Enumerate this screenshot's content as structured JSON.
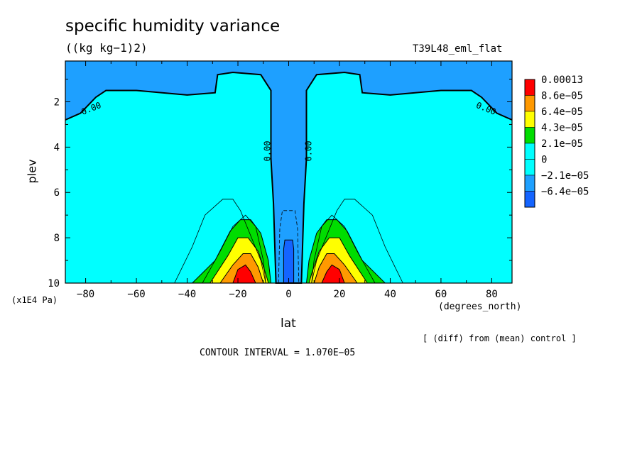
{
  "title": "specific humidity variance",
  "units": "((kg kg−1)2)",
  "run": "T39L48_eml_flat",
  "note": "[ (diff) from (mean) control ]",
  "contour_interval": "CONTOUR INTERVAL = 1.070E−05",
  "chart_data": {
    "type": "heatmap",
    "title": "specific humidity variance",
    "xlabel": "lat",
    "xunits": "(degrees_north)",
    "ylabel": "plev",
    "yunits": "(x1E4 Pa)",
    "xlim": [
      -88,
      88
    ],
    "ylim": [
      10,
      0.2
    ],
    "xticks": [
      -80,
      -60,
      -40,
      -20,
      0,
      20,
      40,
      60,
      80
    ],
    "xtick_labels": [
      "−80",
      "−60",
      "−40",
      "−20",
      "0",
      "20",
      "40",
      "60",
      "80"
    ],
    "yticks": [
      2,
      4,
      6,
      8,
      10
    ],
    "ytick_labels": [
      "2",
      "4",
      "6",
      "8",
      "10"
    ],
    "contour_labels": [
      "0.00",
      "0.00",
      "0.00",
      "0.00"
    ],
    "legend": {
      "placement": "right",
      "entries": [
        {
          "label": "0.00013",
          "color": "#ff0000"
        },
        {
          "label": "8.6e−05",
          "color": "#ff9900"
        },
        {
          "label": "6.4e−05",
          "color": "#ffff00"
        },
        {
          "label": "4.3e−05",
          "color": "#00dd00"
        },
        {
          "label": "2.1e−05",
          "color": "#00ffff"
        },
        {
          "label": "0",
          "color": "#00ffff"
        },
        {
          "label": "−2.1e−05",
          "color": "#1ea0ff"
        },
        {
          "label": "−6.4e−05",
          "color": "#1464ff"
        }
      ]
    },
    "fill_colors": {
      "negative": "#1ea0ff",
      "strong_negative": "#1464ff",
      "zero_band": "#00ffff",
      "green": "#00dd00",
      "yellow": "#ffff00",
      "orange": "#ff9900",
      "red": "#ff0000"
    }
  }
}
